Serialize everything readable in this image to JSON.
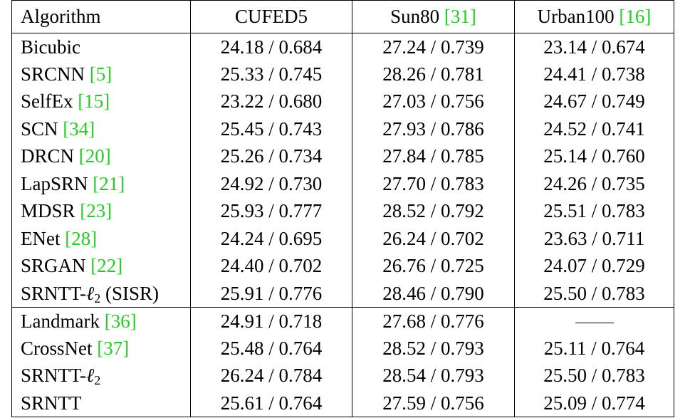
{
  "table": {
    "headers": [
      {
        "text": "Algorithm",
        "ref": ""
      },
      {
        "text": "CUFED5",
        "ref": ""
      },
      {
        "text": "Sun80 ",
        "ref": "[31]"
      },
      {
        "text": "Urban100 ",
        "ref": "[16]"
      }
    ],
    "group1": [
      {
        "name": "Bicubic",
        "ref": "",
        "cufed5": "24.18 / 0.684",
        "sun80": "27.24 / 0.739",
        "urban100": "23.14 / 0.674",
        "bold": false
      },
      {
        "name": "SRCNN ",
        "ref": "[5]",
        "cufed5": "25.33 / 0.745",
        "sun80": "28.26 / 0.781",
        "urban100": "24.41 / 0.738",
        "bold": false
      },
      {
        "name": "SelfEx ",
        "ref": "[15]",
        "cufed5": "23.22 / 0.680",
        "sun80": "27.03 / 0.756",
        "urban100": "24.67 / 0.749",
        "bold": false
      },
      {
        "name": "SCN ",
        "ref": "[34]",
        "cufed5": "25.45 / 0.743",
        "sun80": "27.93 / 0.786",
        "urban100": "24.52 / 0.741",
        "bold": false
      },
      {
        "name": "DRCN ",
        "ref": "[20]",
        "cufed5": "25.26 / 0.734",
        "sun80": "27.84 / 0.785",
        "urban100": "25.14 / 0.760",
        "bold": false
      },
      {
        "name": "LapSRN ",
        "ref": "[21]",
        "cufed5": "24.92 / 0.730",
        "sun80": "27.70 / 0.783",
        "urban100": "24.26 / 0.735",
        "bold": false
      },
      {
        "name": "MDSR ",
        "ref": "[23]",
        "cufed5": "25.93 / 0.777",
        "sun80": "28.52 / 0.792",
        "urban100": "25.51 / 0.783",
        "bold": true
      },
      {
        "name": "ENet ",
        "ref": "[28]",
        "cufed5": "24.24 / 0.695",
        "sun80": "26.24 / 0.702",
        "urban100": "23.63 / 0.711",
        "bold": false
      },
      {
        "name": "SRGAN ",
        "ref": "[22]",
        "cufed5": "24.40 / 0.702",
        "sun80": "26.76 / 0.725",
        "urban100": "24.07 / 0.729",
        "bold": false
      },
      {
        "name": "SRNTT-",
        "ell": "ℓ",
        "sub": "2",
        "suffix": " (SISR)",
        "cufed5": "25.91 / 0.776",
        "sun80": "28.46 / 0.790",
        "urban100": "25.50 / 0.783",
        "bold": false
      }
    ],
    "group2": [
      {
        "name": "Landmark ",
        "ref": "[36]",
        "cufed5": "24.91 / 0.718",
        "sun80": "27.68 / 0.776",
        "urban100": "—",
        "bold": false
      },
      {
        "name": "CrossNet ",
        "ref": "[37]",
        "cufed5": "25.48 / 0.764",
        "sun80": "28.52 / 0.793",
        "urban100": "25.11 / 0.764",
        "bold": false
      },
      {
        "name": "SRNTT-",
        "ell": "ℓ",
        "sub": "2",
        "suffix": "",
        "cufed5": "26.24 / 0.784",
        "sun80": "28.54 / 0.793",
        "urban100": "25.50 / 0.783",
        "bold": true
      },
      {
        "name": "SRNTT",
        "ref": "",
        "cufed5": "25.61 / 0.764",
        "sun80": "27.59 / 0.756",
        "urban100": "25.09 / 0.774",
        "bold": false
      }
    ]
  },
  "colors": {
    "citation": "#22cc22",
    "text": "#000000",
    "rule": "#000000"
  }
}
